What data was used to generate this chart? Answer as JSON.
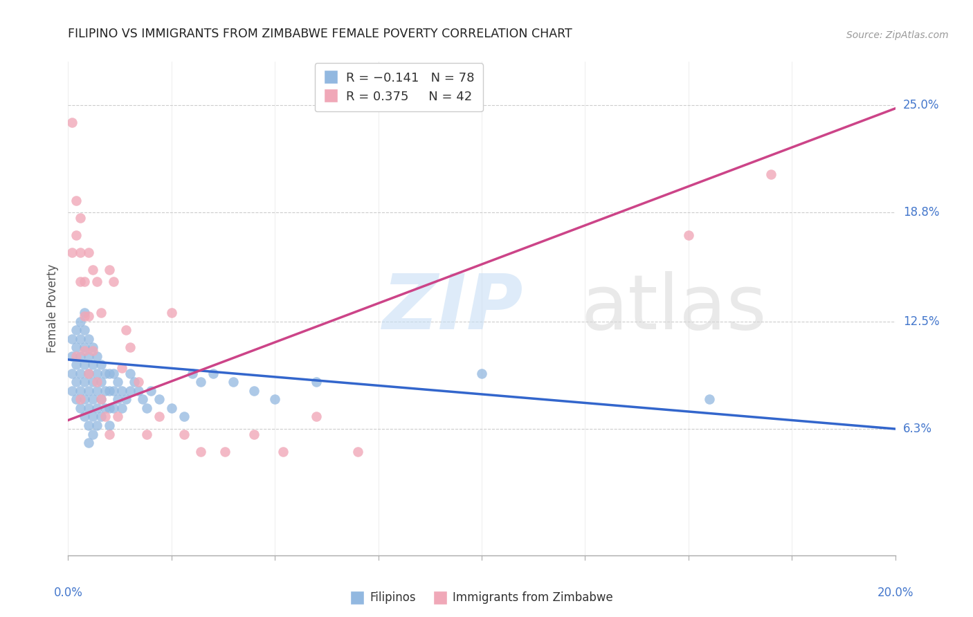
{
  "title": "FILIPINO VS IMMIGRANTS FROM ZIMBABWE FEMALE POVERTY CORRELATION CHART",
  "source": "Source: ZipAtlas.com",
  "ylabel": "Female Poverty",
  "ytick_labels": [
    "6.3%",
    "12.5%",
    "18.8%",
    "25.0%"
  ],
  "ytick_values": [
    0.063,
    0.125,
    0.188,
    0.25
  ],
  "xlim": [
    0.0,
    0.2
  ],
  "ylim": [
    -0.01,
    0.275
  ],
  "color_blue": "#92b8e0",
  "color_pink": "#f0a8b8",
  "color_line_blue": "#3366cc",
  "color_line_pink": "#cc4488",
  "color_title": "#222222",
  "color_source": "#999999",
  "color_ytick": "#4477cc",
  "color_xtick": "#4477cc",
  "blue_line_y0": 0.103,
  "blue_line_y1": 0.063,
  "pink_line_y0": 0.068,
  "pink_line_y1": 0.248,
  "filipinos_x": [
    0.001,
    0.001,
    0.001,
    0.001,
    0.002,
    0.002,
    0.002,
    0.002,
    0.002,
    0.003,
    0.003,
    0.003,
    0.003,
    0.003,
    0.003,
    0.004,
    0.004,
    0.004,
    0.004,
    0.004,
    0.004,
    0.004,
    0.005,
    0.005,
    0.005,
    0.005,
    0.005,
    0.005,
    0.005,
    0.006,
    0.006,
    0.006,
    0.006,
    0.006,
    0.006,
    0.007,
    0.007,
    0.007,
    0.007,
    0.007,
    0.008,
    0.008,
    0.008,
    0.008,
    0.009,
    0.009,
    0.009,
    0.01,
    0.01,
    0.01,
    0.01,
    0.011,
    0.011,
    0.011,
    0.012,
    0.012,
    0.013,
    0.013,
    0.014,
    0.015,
    0.015,
    0.016,
    0.017,
    0.018,
    0.019,
    0.02,
    0.022,
    0.025,
    0.028,
    0.03,
    0.032,
    0.035,
    0.04,
    0.045,
    0.05,
    0.06,
    0.1,
    0.155
  ],
  "filipinos_y": [
    0.115,
    0.105,
    0.095,
    0.085,
    0.12,
    0.11,
    0.1,
    0.09,
    0.08,
    0.125,
    0.115,
    0.105,
    0.095,
    0.085,
    0.075,
    0.13,
    0.12,
    0.11,
    0.1,
    0.09,
    0.08,
    0.07,
    0.115,
    0.105,
    0.095,
    0.085,
    0.075,
    0.065,
    0.055,
    0.11,
    0.1,
    0.09,
    0.08,
    0.07,
    0.06,
    0.105,
    0.095,
    0.085,
    0.075,
    0.065,
    0.1,
    0.09,
    0.08,
    0.07,
    0.095,
    0.085,
    0.075,
    0.095,
    0.085,
    0.075,
    0.065,
    0.095,
    0.085,
    0.075,
    0.09,
    0.08,
    0.085,
    0.075,
    0.08,
    0.095,
    0.085,
    0.09,
    0.085,
    0.08,
    0.075,
    0.085,
    0.08,
    0.075,
    0.07,
    0.095,
    0.09,
    0.095,
    0.09,
    0.085,
    0.08,
    0.09,
    0.095,
    0.08
  ],
  "zimbabwe_x": [
    0.001,
    0.001,
    0.002,
    0.002,
    0.002,
    0.003,
    0.003,
    0.003,
    0.003,
    0.004,
    0.004,
    0.004,
    0.005,
    0.005,
    0.005,
    0.006,
    0.006,
    0.007,
    0.007,
    0.008,
    0.008,
    0.009,
    0.01,
    0.01,
    0.011,
    0.012,
    0.013,
    0.014,
    0.015,
    0.017,
    0.019,
    0.022,
    0.025,
    0.028,
    0.032,
    0.038,
    0.045,
    0.052,
    0.06,
    0.07,
    0.15,
    0.17
  ],
  "zimbabwe_y": [
    0.24,
    0.165,
    0.195,
    0.175,
    0.105,
    0.185,
    0.165,
    0.148,
    0.08,
    0.148,
    0.128,
    0.108,
    0.165,
    0.128,
    0.095,
    0.155,
    0.108,
    0.148,
    0.09,
    0.13,
    0.08,
    0.07,
    0.155,
    0.06,
    0.148,
    0.07,
    0.098,
    0.12,
    0.11,
    0.09,
    0.06,
    0.07,
    0.13,
    0.06,
    0.05,
    0.05,
    0.06,
    0.05,
    0.07,
    0.05,
    0.175,
    0.21
  ]
}
